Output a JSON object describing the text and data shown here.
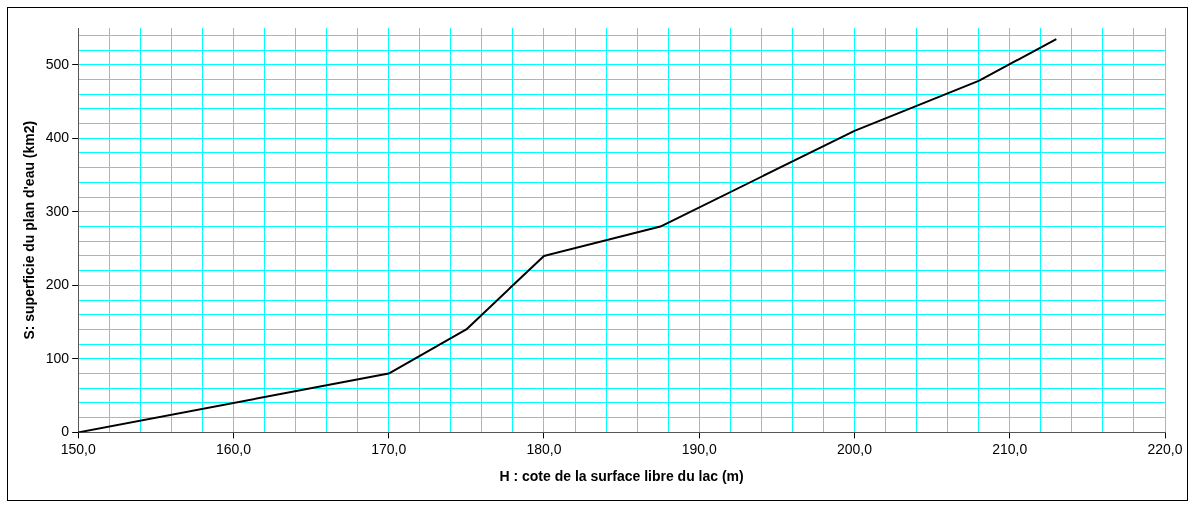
{
  "chart_data": {
    "type": "line",
    "xlabel": "H : cote de la surface libre du lac (m)",
    "ylabel": "S: superficie du plan d'eau (km2)",
    "x": [
      150,
      170,
      175,
      180,
      187.5,
      200,
      208,
      213
    ],
    "series": [
      {
        "color": "#000000",
        "values": [
          0,
          80,
          140,
          240,
          280,
          410,
          478,
          535
        ]
      }
    ],
    "xlim": [
      150,
      220
    ],
    "xticks": [
      {
        "value": 150,
        "label": "150,0"
      },
      {
        "value": 152,
        "label": null
      },
      {
        "value": 154,
        "label": null
      },
      {
        "value": 156,
        "label": null
      },
      {
        "value": 158,
        "label": null
      },
      {
        "value": 160,
        "label": "160,0"
      },
      {
        "value": 162,
        "label": null
      },
      {
        "value": 164,
        "label": null
      },
      {
        "value": 166,
        "label": null
      },
      {
        "value": 168,
        "label": null
      },
      {
        "value": 170,
        "label": "170,0"
      },
      {
        "value": 172,
        "label": null
      },
      {
        "value": 174,
        "label": null
      },
      {
        "value": 176,
        "label": null
      },
      {
        "value": 178,
        "label": null
      },
      {
        "value": 180,
        "label": "180,0"
      },
      {
        "value": 182,
        "label": null
      },
      {
        "value": 184,
        "label": null
      },
      {
        "value": 186,
        "label": null
      },
      {
        "value": 188,
        "label": null
      },
      {
        "value": 190,
        "label": "190,0"
      },
      {
        "value": 192,
        "label": null
      },
      {
        "value": 194,
        "label": null
      },
      {
        "value": 196,
        "label": null
      },
      {
        "value": 198,
        "label": null
      },
      {
        "value": 200,
        "label": "200,0"
      },
      {
        "value": 202,
        "label": null
      },
      {
        "value": 204,
        "label": null
      },
      {
        "value": 206,
        "label": null
      },
      {
        "value": 208,
        "label": null
      },
      {
        "value": 210,
        "label": "210,0"
      },
      {
        "value": 212,
        "label": null
      },
      {
        "value": 214,
        "label": null
      },
      {
        "value": 216,
        "label": null
      },
      {
        "value": 218,
        "label": null
      },
      {
        "value": 220,
        "label": "220,0"
      }
    ],
    "ylim": [
      0,
      550
    ],
    "yticks": [
      0,
      {
        "value": 20,
        "label": null
      },
      {
        "value": 40,
        "label": null
      },
      {
        "value": 60,
        "label": null
      },
      {
        "value": 80,
        "label": null
      },
      100,
      {
        "value": 120,
        "label": null
      },
      {
        "value": 140,
        "label": null
      },
      {
        "value": 160,
        "label": null
      },
      {
        "value": 180,
        "label": null
      },
      200,
      {
        "value": 220,
        "label": null
      },
      {
        "value": 240,
        "label": null
      },
      {
        "value": 260,
        "label": null
      },
      {
        "value": 280,
        "label": null
      },
      300,
      {
        "value": 320,
        "label": null
      },
      {
        "value": 340,
        "label": null
      },
      {
        "value": 360,
        "label": null
      },
      {
        "value": 380,
        "label": null
      },
      400,
      {
        "value": 420,
        "label": null
      },
      {
        "value": 440,
        "label": null
      },
      {
        "value": 460,
        "label": null
      },
      {
        "value": 480,
        "label": null
      },
      500,
      {
        "value": 520,
        "label": null
      },
      {
        "value": 540,
        "label": null
      }
    ],
    "grid": true,
    "legend": false,
    "marker": "none",
    "line_style": "solid"
  }
}
